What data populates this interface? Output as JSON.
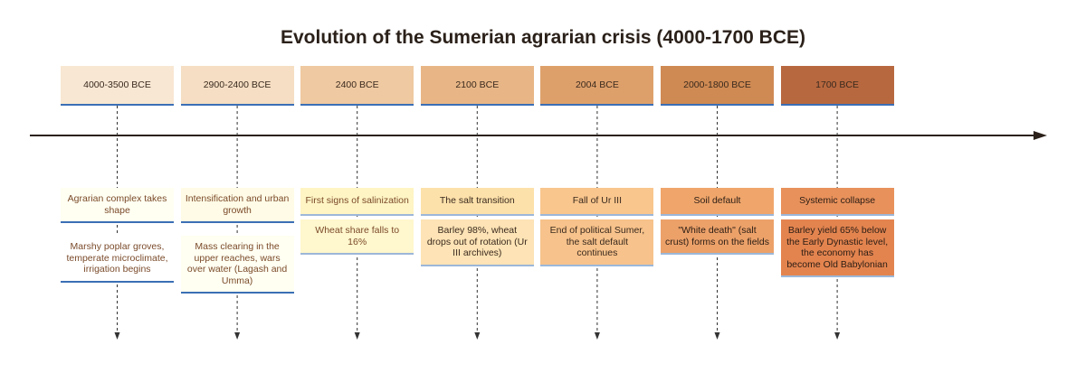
{
  "title": "Evolution of the Sumerian agrarian crisis (4000-1700 BCE)",
  "events": [
    {
      "date": "4000-3500 BCE",
      "heading": "Agrarian complex takes shape",
      "description": "Marshy poplar groves, temperate microclimate, irrigation begins"
    },
    {
      "date": "2900-2400 BCE",
      "heading": "Intensification and urban growth",
      "description": "Mass clearing in the upper reaches, wars over water (Lagash and Umma)"
    },
    {
      "date": "2400 BCE",
      "heading": "First signs of salinization",
      "description": "Wheat share falls to 16%"
    },
    {
      "date": "2100 BCE",
      "heading": "The salt transition",
      "description": "Barley 98%, wheat drops out of rotation (Ur III archives)"
    },
    {
      "date": "2004 BCE",
      "heading": "Fall of Ur III",
      "description": "End of political Sumer, the salt default continues"
    },
    {
      "date": "2000-1800 BCE",
      "heading": "Soil default",
      "description": "\"White death\" (salt crust) forms on the fields"
    },
    {
      "date": "1700 BCE",
      "heading": "Systemic collapse",
      "description": "Barley yield 65% below the Early Dynastic level, the economy has become Old Babylonian"
    }
  ]
}
